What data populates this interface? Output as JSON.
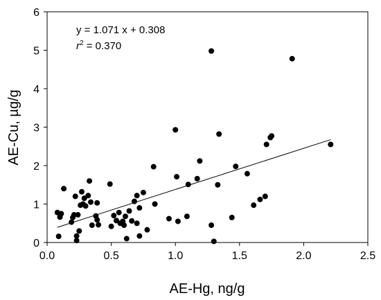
{
  "chart_data": {
    "type": "scatter",
    "xlabel": "AE-Hg, ng/g",
    "ylabel": "AE-Cu, µg/g",
    "xlim": [
      0.0,
      2.5
    ],
    "ylim": [
      0,
      6
    ],
    "xticks": [
      "0.0",
      "0.5",
      "1.0",
      "1.5",
      "2.0",
      "2.5"
    ],
    "yticks": [
      "0",
      "1",
      "2",
      "3",
      "4",
      "5",
      "6"
    ],
    "grid": false,
    "annotations": {
      "equation": "y = 1.071 x + 0.308",
      "r2_prefix": "r",
      "r2_sup": "2",
      "r2_value": " = 0.370"
    },
    "regression": {
      "slope": 1.071,
      "intercept": 0.308,
      "x_range": [
        0.08,
        2.21
      ]
    },
    "points": [
      [
        0.08,
        0.78
      ],
      [
        0.09,
        0.16
      ],
      [
        0.11,
        0.75
      ],
      [
        0.1,
        0.66
      ],
      [
        0.13,
        1.4
      ],
      [
        0.19,
        0.53
      ],
      [
        0.2,
        0.65
      ],
      [
        0.21,
        0.72
      ],
      [
        0.22,
        1.2
      ],
      [
        0.23,
        0.05
      ],
      [
        0.23,
        0.17
      ],
      [
        0.24,
        0.72
      ],
      [
        0.25,
        0.3
      ],
      [
        0.26,
        0.97
      ],
      [
        0.27,
        1.32
      ],
      [
        0.28,
        1.0
      ],
      [
        0.29,
        1.15
      ],
      [
        0.3,
        0.95
      ],
      [
        0.32,
        1.22
      ],
      [
        0.33,
        1.6
      ],
      [
        0.34,
        1.05
      ],
      [
        0.35,
        0.45
      ],
      [
        0.38,
        0.69
      ],
      [
        0.39,
        0.59
      ],
      [
        0.39,
        1.03
      ],
      [
        0.4,
        0.46
      ],
      [
        0.49,
        1.52
      ],
      [
        0.5,
        0.42
      ],
      [
        0.52,
        0.7
      ],
      [
        0.54,
        0.57
      ],
      [
        0.56,
        0.78
      ],
      [
        0.57,
        0.5
      ],
      [
        0.59,
        0.55
      ],
      [
        0.6,
        0.45
      ],
      [
        0.61,
        0.68
      ],
      [
        0.62,
        0.1
      ],
      [
        0.64,
        0.82
      ],
      [
        0.66,
        0.56
      ],
      [
        0.68,
        1.07
      ],
      [
        0.7,
        1.22
      ],
      [
        0.7,
        0.5
      ],
      [
        0.72,
        0.9
      ],
      [
        0.72,
        0.17
      ],
      [
        0.75,
        1.3
      ],
      [
        0.78,
        0.33
      ],
      [
        0.83,
        1.97
      ],
      [
        0.84,
        1.0
      ],
      [
        0.95,
        0.62
      ],
      [
        1.0,
        2.93
      ],
      [
        1.01,
        1.71
      ],
      [
        1.02,
        0.55
      ],
      [
        1.09,
        0.68
      ],
      [
        1.1,
        1.51
      ],
      [
        1.17,
        1.66
      ],
      [
        1.19,
        2.12
      ],
      [
        1.28,
        0.45
      ],
      [
        1.28,
        4.98
      ],
      [
        1.3,
        0.03
      ],
      [
        1.33,
        1.5
      ],
      [
        1.34,
        2.82
      ],
      [
        1.44,
        0.65
      ],
      [
        1.47,
        1.98
      ],
      [
        1.56,
        1.79
      ],
      [
        1.61,
        0.97
      ],
      [
        1.66,
        1.12
      ],
      [
        1.7,
        1.2
      ],
      [
        1.71,
        2.55
      ],
      [
        1.74,
        2.73
      ],
      [
        1.75,
        2.77
      ],
      [
        1.91,
        4.78
      ],
      [
        2.21,
        2.55
      ]
    ]
  }
}
